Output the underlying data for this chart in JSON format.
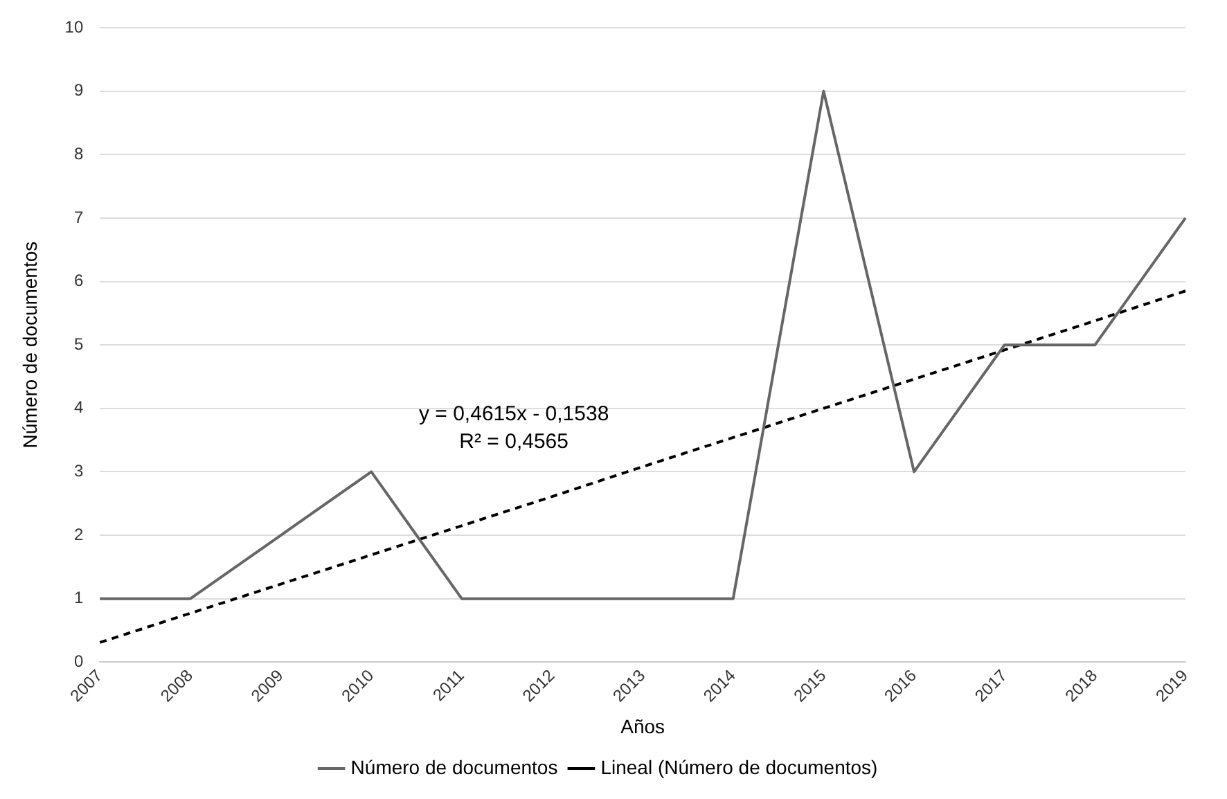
{
  "chart_data": {
    "type": "line",
    "xlabel": "Años",
    "ylabel": "Número de documentos",
    "categories": [
      "2007",
      "2008",
      "2009",
      "2010",
      "2011",
      "2012",
      "2013",
      "2014",
      "2015",
      "2016",
      "2017",
      "2018",
      "2019"
    ],
    "series": [
      {
        "name": "Número de documentos",
        "color": "#666666",
        "values": [
          1,
          1,
          2,
          3,
          1,
          1,
          1,
          1,
          9,
          3,
          5,
          5,
          7
        ]
      },
      {
        "name": "Lineal (Número de documentos)",
        "color": "#000000",
        "line_style": "dashed",
        "values": [
          0.31,
          0.77,
          1.23,
          1.69,
          2.15,
          2.61,
          3.08,
          3.54,
          4.0,
          4.46,
          4.92,
          5.38,
          5.85
        ]
      }
    ],
    "ylim": [
      0,
      10
    ],
    "yticks": [
      0,
      1,
      2,
      3,
      4,
      5,
      6,
      7,
      8,
      9,
      10
    ],
    "grid": "y",
    "legend": "bottom",
    "marker": "none",
    "annotations": [
      "y = 0,4615x - 0,1538",
      "R² = 0,4565"
    ]
  }
}
